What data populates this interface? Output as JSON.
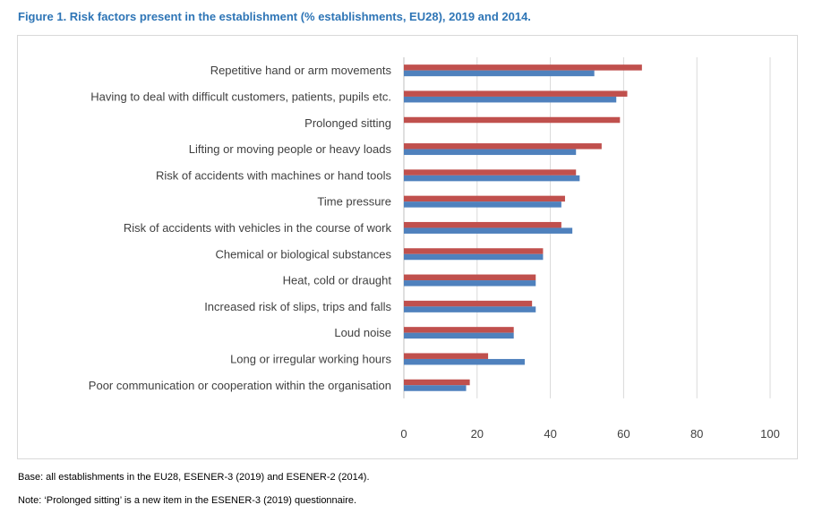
{
  "figure": {
    "title": "Figure 1. Risk factors present in the establishment (% establishments, EU28), 2019 and 2014.",
    "base_note": "Base: all establishments in the EU28, ESENER-3 (2019) and ESENER-2 (2014).",
    "note": "Note: ‘Prolonged sitting’ is a new item in the ESENER-3 (2019) questionnaire."
  },
  "chart_data": {
    "type": "bar",
    "orientation": "horizontal",
    "title": "Figure 1. Risk factors present in the establishment (% establishments, EU28), 2019 and 2014.",
    "categories": [
      "Repetitive hand or arm movements",
      "Having to deal with difficult customers, patients, pupils etc.",
      "Prolonged sitting",
      "Lifting or moving people or heavy loads",
      "Risk of accidents with machines or hand tools",
      "Time pressure",
      "Risk of accidents with vehicles in the course of work",
      "Chemical or biological substances",
      "Heat, cold or draught",
      "Increased risk of slips, trips and falls",
      "Loud noise",
      "Long or irregular working hours",
      "Poor communication or cooperation within the organisation"
    ],
    "series": [
      {
        "name": "2019",
        "color": "#c0504d",
        "values": [
          65,
          61,
          59,
          54,
          47,
          44,
          43,
          38,
          36,
          35,
          30,
          23,
          18
        ]
      },
      {
        "name": "2014",
        "color": "#4f81bd",
        "values": [
          52,
          58,
          null,
          47,
          48,
          43,
          46,
          38,
          36,
          36,
          30,
          33,
          17
        ]
      }
    ],
    "xlim": [
      0,
      100
    ],
    "xticks": [
      0,
      20,
      40,
      60,
      80,
      100
    ],
    "grid": true,
    "legend_position": "bottom"
  }
}
